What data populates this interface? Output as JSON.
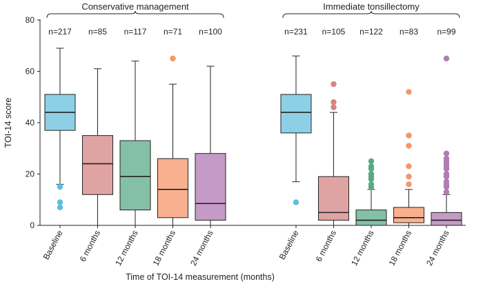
{
  "chart_data": {
    "type": "box",
    "ylabel": "TOI-14 score",
    "xlabel": "Time of TOI-14 measurement (months)",
    "ylim": [
      0,
      80
    ],
    "yticks": [
      0,
      20,
      40,
      60,
      80
    ],
    "grid": false,
    "groups": [
      {
        "name": "Conservative management",
        "boxes": [
          {
            "label": "Baseline",
            "n": "n=217",
            "color": "#8dd0e6",
            "whisker_low": 16,
            "q1": 37,
            "median": 44,
            "q3": 51,
            "whisker_high": 69,
            "outliers": [
              15,
              9,
              7
            ]
          },
          {
            "label": "6 months",
            "n": "n=85",
            "color": "#e0a3a3",
            "whisker_low": 0,
            "q1": 12,
            "median": 24,
            "q3": 35,
            "whisker_high": 61,
            "outliers": []
          },
          {
            "label": "12 months",
            "n": "n=117",
            "color": "#84c0a7",
            "whisker_low": 0,
            "q1": 6,
            "median": 19,
            "q3": 33,
            "whisker_high": 64,
            "outliers": []
          },
          {
            "label": "18 months",
            "n": "n=71",
            "color": "#f8b08f",
            "whisker_low": 0,
            "q1": 3,
            "median": 14,
            "q3": 26,
            "whisker_high": 55,
            "outliers": [
              65
            ]
          },
          {
            "label": "24 months",
            "n": "n=100",
            "color": "#c69ac7",
            "whisker_low": 0,
            "q1": 2,
            "median": 8.5,
            "q3": 28,
            "whisker_high": 62,
            "outliers": []
          }
        ]
      },
      {
        "name": "Immediate tonsillectomy",
        "boxes": [
          {
            "label": "Baseline",
            "n": "n=231",
            "color": "#8dd0e6",
            "whisker_low": 17,
            "q1": 36,
            "median": 44,
            "q3": 51,
            "whisker_high": 66,
            "outliers": [
              9
            ]
          },
          {
            "label": "6 months",
            "n": "n=105",
            "color": "#e0a3a3",
            "whisker_low": 0,
            "q1": 2,
            "median": 5,
            "q3": 19,
            "whisker_high": 44,
            "outliers": [
              46,
              48,
              55
            ]
          },
          {
            "label": "12 months",
            "n": "n=122",
            "color": "#84c0a7",
            "whisker_low": 0,
            "q1": 0,
            "median": 2,
            "q3": 6,
            "whisker_high": 14,
            "outliers": [
              15,
              16,
              18,
              19,
              20,
              22,
              23,
              25
            ]
          },
          {
            "label": "18 months",
            "n": "n=83",
            "color": "#f8b08f",
            "whisker_low": 0,
            "q1": 1,
            "median": 3,
            "q3": 7,
            "whisker_high": 14,
            "outliers": [
              16,
              19,
              23,
              31,
              35,
              52
            ]
          },
          {
            "label": "24 months",
            "n": "n=99",
            "color": "#c69ac7",
            "whisker_low": 0,
            "q1": 0,
            "median": 2,
            "q3": 5,
            "whisker_high": 12,
            "outliers": [
              13,
              15,
              16,
              17,
              19,
              20,
              22,
              23,
              24,
              25,
              26,
              28,
              65
            ]
          }
        ]
      }
    ]
  }
}
